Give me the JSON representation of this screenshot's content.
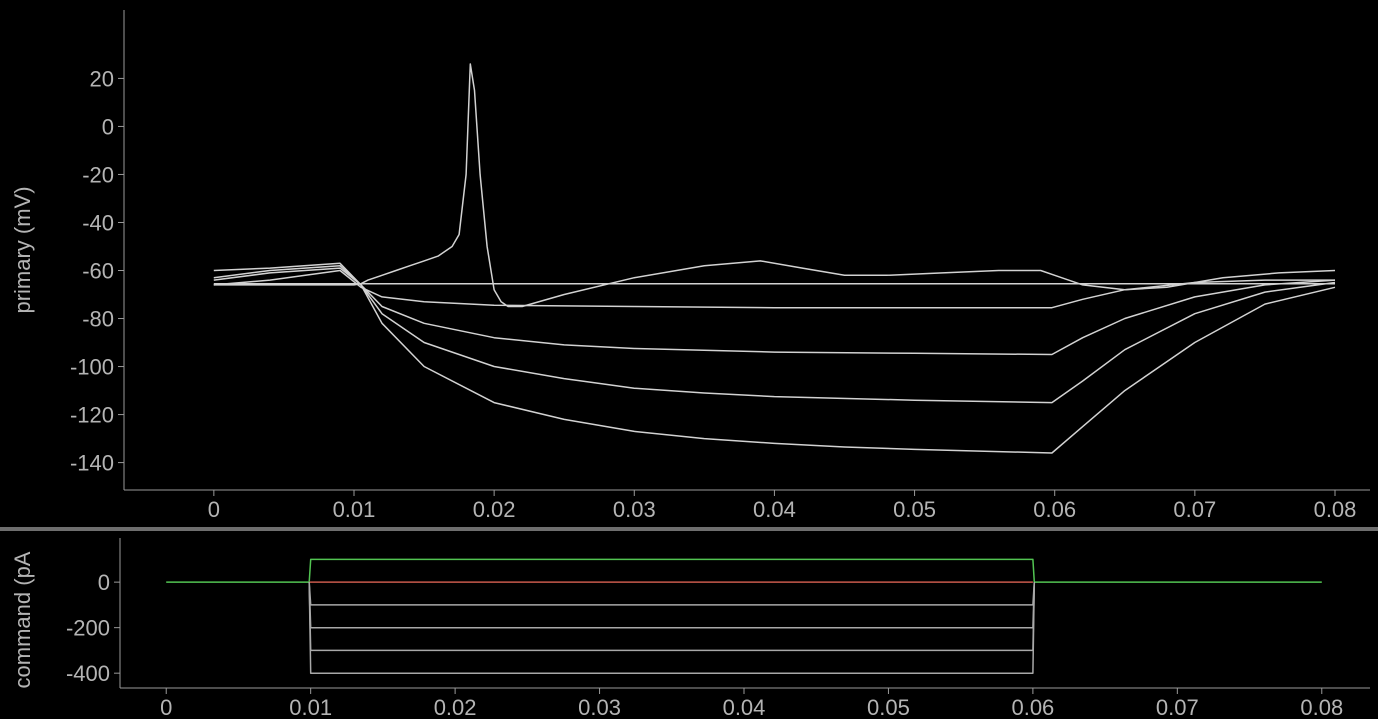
{
  "chart_data": [
    {
      "type": "line",
      "ylabel": "primary (mV)",
      "xlim": [
        -0.0032,
        0.0805
      ],
      "ylim": [
        -146,
        36
      ],
      "xticks": [
        0,
        0.01,
        0.02,
        0.03,
        0.04,
        0.05,
        0.06,
        0.07,
        0.08
      ],
      "xtick_labels": [
        "0",
        "0.01",
        "0.02",
        "0.03",
        "0.04",
        "0.05",
        "0.06",
        "0.07",
        "0.08"
      ],
      "yticks": [
        20,
        0,
        -20,
        -40,
        -60,
        -80,
        -100,
        -120,
        -140
      ],
      "ytick_labels": [
        "20",
        "0",
        "-20",
        "-40",
        "-60",
        "-80",
        "-100",
        "-120",
        "-140"
      ],
      "grid": false,
      "color": "#d2d2d2",
      "series": [
        {
          "x": [
            0,
            0.01,
            0.0105,
            0.011,
            0.012,
            0.013,
            0.014,
            0.015,
            0.016,
            0.017,
            0.0175,
            0.018,
            0.0183,
            0.0186,
            0.019,
            0.0195,
            0.02,
            0.0205,
            0.021,
            0.022,
            0.025,
            0.03,
            0.035,
            0.039,
            0.042,
            0.045,
            0.048,
            0.052,
            0.056,
            0.059,
            0.06,
            0.062,
            0.065,
            0.068,
            0.072,
            0.076,
            0.08
          ],
          "values": [
            -66,
            -66,
            -65.5,
            -64,
            -62,
            -60,
            -58,
            -56,
            -54,
            -50,
            -45,
            -20,
            26,
            15,
            -20,
            -50,
            -68,
            -73,
            -75,
            -75,
            -70,
            -63,
            -58,
            -56,
            -59,
            -62,
            -62,
            -61,
            -60,
            -60,
            -62,
            -66,
            -68,
            -67,
            -63,
            -61,
            -60
          ]
        },
        {
          "x": [
            0,
            0.01,
            0.08
          ],
          "values": [
            -65.5,
            -65.5,
            -65.5
          ]
        },
        {
          "x": [
            0,
            0.004,
            0.009,
            0.0105,
            0.012,
            0.015,
            0.02,
            0.03,
            0.04,
            0.05,
            0.0598,
            0.062,
            0.065,
            0.07,
            0.075,
            0.08
          ],
          "values": [
            -66,
            -64,
            -60,
            -67,
            -71,
            -73,
            -74.5,
            -75,
            -75.5,
            -75.5,
            -75.5,
            -72,
            -68,
            -65,
            -64,
            -64
          ]
        },
        {
          "x": [
            0,
            0.004,
            0.009,
            0.0105,
            0.012,
            0.015,
            0.02,
            0.025,
            0.03,
            0.04,
            0.05,
            0.0598,
            0.062,
            0.065,
            0.07,
            0.075,
            0.08
          ],
          "values": [
            -64,
            -61,
            -59,
            -66,
            -75,
            -82,
            -88,
            -91,
            -92.5,
            -94,
            -94.5,
            -95,
            -88,
            -80,
            -71,
            -66,
            -64
          ]
        },
        {
          "x": [
            0,
            0.004,
            0.009,
            0.0105,
            0.012,
            0.015,
            0.02,
            0.025,
            0.03,
            0.035,
            0.04,
            0.05,
            0.0598,
            0.062,
            0.065,
            0.07,
            0.075,
            0.08
          ],
          "values": [
            -63,
            -60,
            -58,
            -66,
            -78,
            -90,
            -100,
            -105,
            -109,
            -111,
            -112.5,
            -114,
            -115,
            -106,
            -93,
            -78,
            -69,
            -65
          ]
        },
        {
          "x": [
            0,
            0.004,
            0.009,
            0.0105,
            0.012,
            0.015,
            0.02,
            0.025,
            0.03,
            0.035,
            0.04,
            0.045,
            0.05,
            0.0598,
            0.062,
            0.065,
            0.07,
            0.075,
            0.08
          ],
          "values": [
            -60,
            -59,
            -57,
            -66,
            -82,
            -100,
            -115,
            -122,
            -127,
            -130,
            -132,
            -133.5,
            -134.5,
            -136,
            -125,
            -110,
            -90,
            -74,
            -67
          ]
        }
      ]
    },
    {
      "type": "line",
      "ylabel": "command (pA",
      "xlim": [
        -0.0005,
        0.0805
      ],
      "ylim": [
        -430,
        150
      ],
      "xticks": [
        0,
        0.01,
        0.02,
        0.03,
        0.04,
        0.05,
        0.06,
        0.07,
        0.08
      ],
      "xtick_labels": [
        "0",
        "0.01",
        "0.02",
        "0.03",
        "0.04",
        "0.05",
        "0.06",
        "0.07",
        "0.08"
      ],
      "yticks": [
        0,
        -200,
        -400
      ],
      "ytick_labels": [
        "0",
        "-200",
        "-400"
      ],
      "grid": false,
      "series": [
        {
          "x": [
            0,
            0.0099,
            0.01,
            0.06,
            0.0601,
            0.08
          ],
          "values": [
            0,
            0,
            100,
            100,
            0,
            0
          ],
          "color": "#52c452"
        },
        {
          "x": [
            0.0099,
            0.06
          ],
          "values": [
            0,
            0
          ],
          "color": "#c85a4c"
        },
        {
          "x": [
            0.0099,
            0.01,
            0.06,
            0.0601
          ],
          "values": [
            0,
            -100,
            -100,
            0
          ],
          "color": "#a8a8a8"
        },
        {
          "x": [
            0.0099,
            0.01,
            0.06,
            0.0601
          ],
          "values": [
            0,
            -200,
            -200,
            0
          ],
          "color": "#a8a8a8"
        },
        {
          "x": [
            0.0099,
            0.01,
            0.06,
            0.0601
          ],
          "values": [
            0,
            -300,
            -300,
            0
          ],
          "color": "#a8a8a8"
        },
        {
          "x": [
            0.0099,
            0.01,
            0.06,
            0.0601
          ],
          "values": [
            0,
            -400,
            -400,
            0
          ],
          "color": "#a8a8a8"
        }
      ]
    }
  ]
}
